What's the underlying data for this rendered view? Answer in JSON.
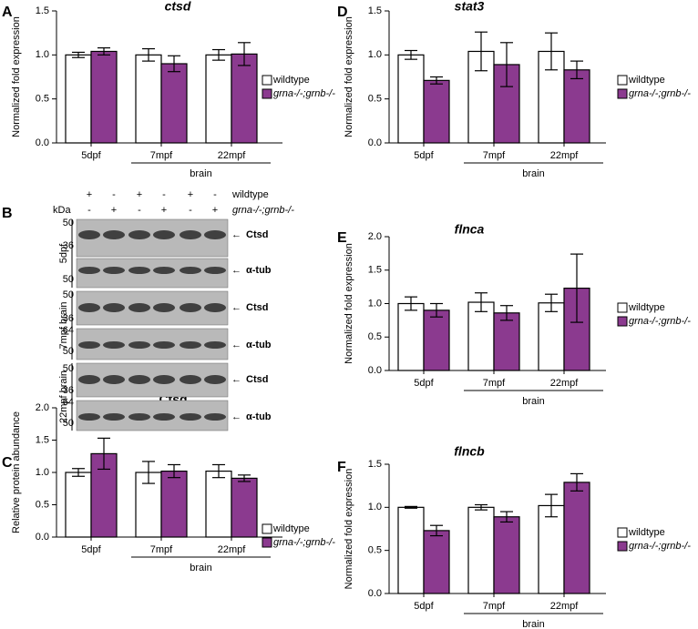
{
  "chart_data": [
    {
      "type": "bar",
      "panel_label": "A",
      "title": "ctsd",
      "y_label": "Normalized fold expression",
      "categories": [
        "5dpf",
        "7mpf",
        "22mpf"
      ],
      "group_label": "brain",
      "series": [
        {
          "name": "wildtype",
          "color": "#ffffff",
          "values": [
            1.0,
            1.0,
            1.0
          ],
          "error": [
            0.03,
            0.07,
            0.06
          ]
        },
        {
          "name": "grna-/-;grnb-/-",
          "color": "#8b3a8f",
          "values": [
            1.04,
            0.9,
            1.01
          ],
          "error": [
            0.04,
            0.09,
            0.13
          ]
        }
      ],
      "ylim": [
        0,
        1.5
      ],
      "yticks": [
        {
          "value": 0,
          "label": "0.0"
        },
        {
          "value": 0.5,
          "label": "0.5"
        },
        {
          "value": 1,
          "label": "1.0"
        },
        {
          "value": 1.5,
          "label": "1.5"
        }
      ]
    },
    {
      "type": "bar",
      "panel_label": "C",
      "title": "Ctsd",
      "y_label": "Relative protein abundance",
      "categories": [
        "5dpf",
        "7mpf",
        "22mpf"
      ],
      "group_label": "brain",
      "series": [
        {
          "name": "wildtype",
          "color": "#ffffff",
          "values": [
            1.0,
            1.0,
            1.02
          ],
          "error": [
            0.06,
            0.17,
            0.1
          ]
        },
        {
          "name": "grna-/-;grnb-/-",
          "color": "#8b3a8f",
          "values": [
            1.29,
            1.02,
            0.91
          ],
          "error": [
            0.24,
            0.1,
            0.05
          ]
        }
      ],
      "ylim": [
        0,
        2
      ],
      "yticks": [
        {
          "value": 0,
          "label": "0.0"
        },
        {
          "value": 0.5,
          "label": "0.5"
        },
        {
          "value": 1,
          "label": "1.0"
        },
        {
          "value": 1.5,
          "label": "1.5"
        },
        {
          "value": 2,
          "label": "2.0"
        }
      ]
    },
    {
      "type": "bar",
      "panel_label": "D",
      "title": "stat3",
      "y_label": "Normalized fold expression",
      "categories": [
        "5dpf",
        "7mpf",
        "22mpf"
      ],
      "group_label": "brain",
      "series": [
        {
          "name": "wildtype",
          "color": "#ffffff",
          "values": [
            1.0,
            1.04,
            1.04
          ],
          "error": [
            0.05,
            0.22,
            0.21
          ]
        },
        {
          "name": "grna-/-;grnb-/-",
          "color": "#8b3a8f",
          "values": [
            0.71,
            0.89,
            0.83
          ],
          "error": [
            0.04,
            0.25,
            0.1
          ]
        }
      ],
      "ylim": [
        0,
        1.5
      ],
      "yticks": [
        {
          "value": 0,
          "label": "0.0"
        },
        {
          "value": 0.5,
          "label": "0.5"
        },
        {
          "value": 1,
          "label": "1.0"
        },
        {
          "value": 1.5,
          "label": "1.5"
        }
      ]
    },
    {
      "type": "bar",
      "panel_label": "E",
      "title": "flnca",
      "y_label": "Normalized fold expression",
      "categories": [
        "5dpf",
        "7mpf",
        "22mpf"
      ],
      "group_label": "brain",
      "series": [
        {
          "name": "wildtype",
          "color": "#ffffff",
          "values": [
            1.0,
            1.02,
            1.01
          ],
          "error": [
            0.1,
            0.14,
            0.13
          ]
        },
        {
          "name": "grna-/-;grnb-/-",
          "color": "#8b3a8f",
          "values": [
            0.9,
            0.86,
            1.23
          ],
          "error": [
            0.1,
            0.11,
            0.51
          ]
        }
      ],
      "ylim": [
        0,
        2
      ],
      "yticks": [
        {
          "value": 0,
          "label": "0.0"
        },
        {
          "value": 0.5,
          "label": "0.5"
        },
        {
          "value": 1,
          "label": "1.0"
        },
        {
          "value": 1.5,
          "label": "1.5"
        },
        {
          "value": 2,
          "label": "2.0"
        }
      ]
    },
    {
      "type": "bar",
      "panel_label": "F",
      "title": "flncb",
      "y_label": "Normalized fold expression",
      "categories": [
        "5dpf",
        "7mpf",
        "22mpf"
      ],
      "group_label": "brain",
      "series": [
        {
          "name": "wildtype",
          "color": "#ffffff",
          "values": [
            1.0,
            1.0,
            1.02
          ],
          "error": [
            0.01,
            0.03,
            0.13
          ]
        },
        {
          "name": "grna-/-;grnb-/-",
          "color": "#8b3a8f",
          "values": [
            0.73,
            0.89,
            1.29
          ],
          "error": [
            0.06,
            0.06,
            0.1
          ]
        }
      ],
      "ylim": [
        0,
        1.5
      ],
      "yticks": [
        {
          "value": 0,
          "label": "0.0"
        },
        {
          "value": 0.5,
          "label": "0.5"
        },
        {
          "value": 1,
          "label": "1.0"
        },
        {
          "value": 1.5,
          "label": "1.5"
        }
      ]
    }
  ],
  "blot": {
    "panel_label": "B",
    "kda_label": "kDa",
    "lane_rows": [
      {
        "name": "wildtype",
        "signs": [
          "+",
          "-",
          "+",
          "-",
          "+",
          "-"
        ]
      },
      {
        "name": "grna-/-;grnb-/-",
        "signs": [
          "-",
          "+",
          "-",
          "+",
          "-",
          "+"
        ]
      }
    ],
    "row_labels": [
      "5dpf",
      "7mpf brain",
      "22mpf brain"
    ],
    "strips": [
      {
        "band": "Ctsd",
        "markers": [
          "50",
          "36"
        ]
      },
      {
        "band": "α-tub",
        "markers": [
          "50"
        ]
      },
      {
        "band": "Ctsd",
        "markers": [
          "50",
          "36"
        ]
      },
      {
        "band": "α-tub",
        "markers": [
          "64",
          "50"
        ]
      },
      {
        "band": "Ctsd",
        "markers": [
          "50",
          "36"
        ]
      },
      {
        "band": "α-tub",
        "markers": [
          "64",
          "50"
        ]
      }
    ]
  }
}
